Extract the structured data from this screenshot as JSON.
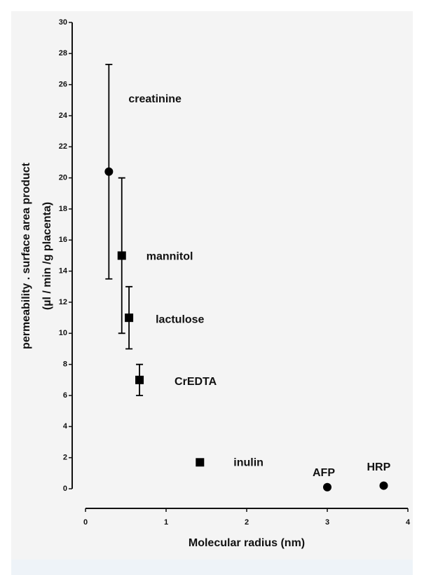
{
  "chart_data": {
    "type": "scatter",
    "xlabel": "Molecular radius (nm)",
    "ylabel": [
      "permeability . surface area product",
      "(µl / min /g placenta)"
    ],
    "series": [
      {
        "names": [
          "creatinine",
          "mannitol",
          "lactulose",
          "CrEDTA",
          "inulin",
          "AFP",
          "HRP"
        ],
        "x": [
          0.29,
          0.45,
          0.54,
          0.67,
          1.42,
          3.0,
          3.7
        ],
        "values": [
          20.4,
          15,
          11,
          7,
          1.7,
          0.1,
          0.2
        ],
        "errors": [
          6.9,
          5,
          2,
          1,
          null,
          null,
          null
        ],
        "markers": [
          "circle",
          "square",
          "square",
          "square",
          "square",
          "circle",
          "circle"
        ],
        "color": "#000000"
      }
    ],
    "xlim": [
      0,
      4
    ],
    "xticks": [
      0,
      1,
      2,
      3,
      4
    ],
    "ylim": [
      0,
      30
    ],
    "yticks": [
      0,
      2,
      4,
      6,
      8,
      10,
      12,
      14,
      16,
      18,
      20,
      22,
      24,
      26,
      28,
      30
    ],
    "grid": false
  }
}
